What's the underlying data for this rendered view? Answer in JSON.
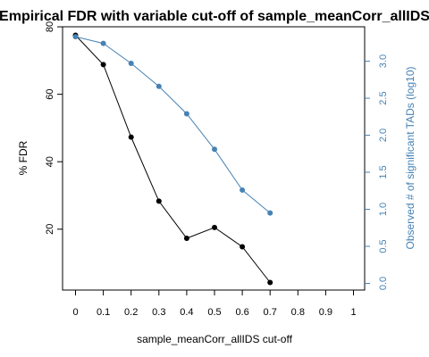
{
  "chart_data": {
    "type": "line",
    "title": "Empirical FDR with variable cut-off of sample_meanCorr_allIDS",
    "xlabel": "sample_meanCorr_allIDS cut-off",
    "ylabel_left": "% FDR",
    "ylabel_right": "Observed # of significant TADs (log10)",
    "x_ticks": [
      "0",
      "0.1",
      "0.2",
      "0.3",
      "0.4",
      "0.5",
      "0.6",
      "0.7",
      "0.8",
      "0.9",
      "1"
    ],
    "x_range": [
      0,
      1
    ],
    "y_left_ticks": [
      "20",
      "40",
      "60",
      "80"
    ],
    "y_left_range": [
      4.2,
      77.5
    ],
    "y_right_ticks": [
      "0.0",
      "0.5",
      "1.0",
      "1.5",
      "2.0",
      "2.5",
      "3.0"
    ],
    "y_right_range": [
      0.0,
      3.35
    ],
    "grid": false,
    "series": [
      {
        "axis": "left",
        "color": "#000000",
        "x": [
          0,
          0.1,
          0.2,
          0.3,
          0.4,
          0.5,
          0.6,
          0.7
        ],
        "values": [
          77.5,
          68.8,
          47.3,
          28.3,
          17.3,
          20.5,
          14.8,
          4.2
        ]
      },
      {
        "axis": "right",
        "color": "#4682b4",
        "x": [
          0,
          0.1,
          0.2,
          0.3,
          0.4,
          0.5,
          0.6,
          0.7
        ],
        "values": [
          3.33,
          3.24,
          2.97,
          2.66,
          2.29,
          1.81,
          1.26,
          0.95
        ]
      }
    ]
  }
}
